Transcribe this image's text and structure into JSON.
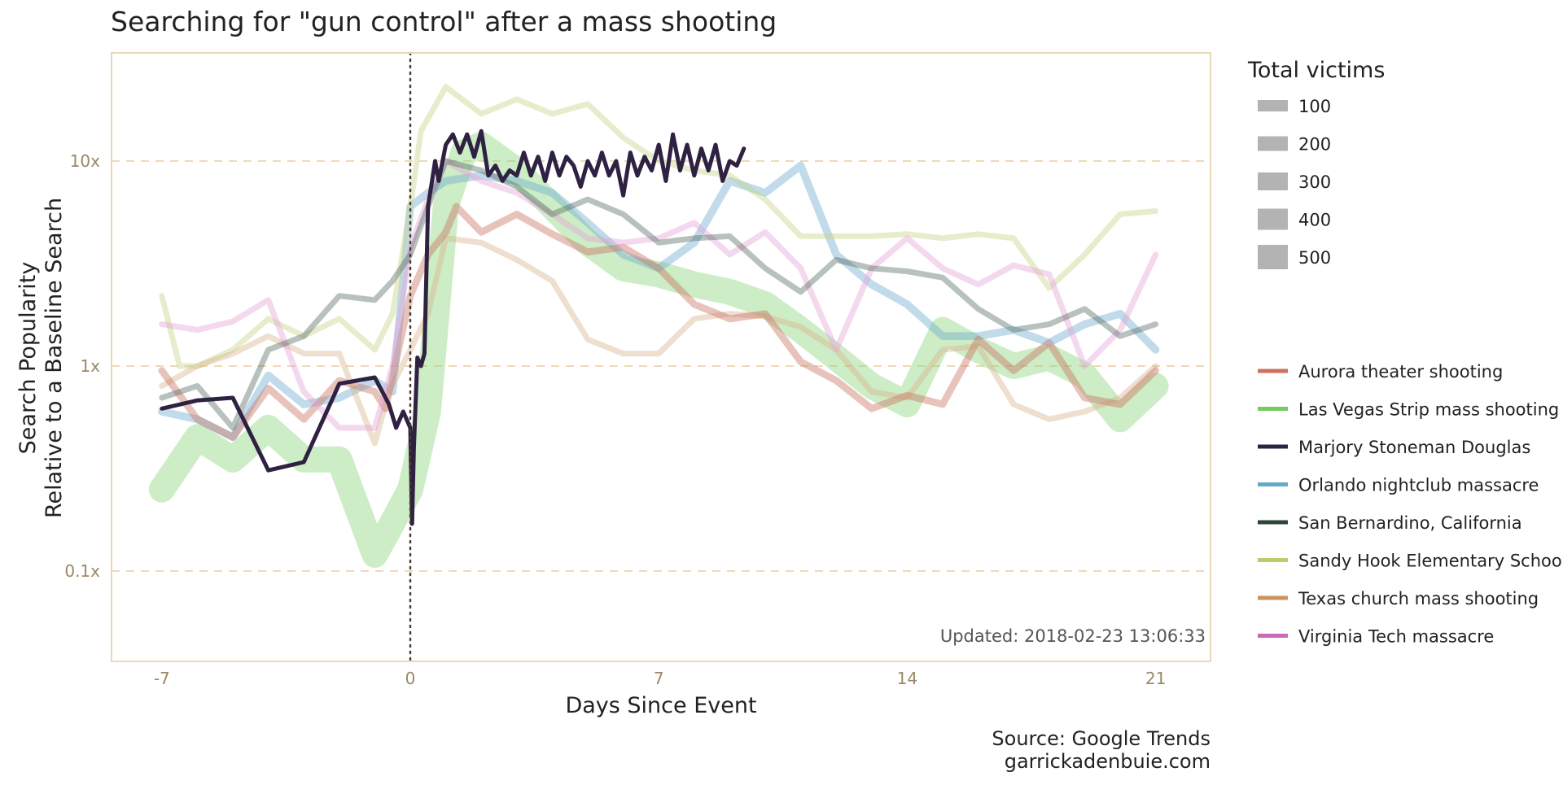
{
  "chart_data": {
    "type": "line",
    "title": "Searching for \"gun control\" after a mass shooting",
    "xlabel": "Days Since Event",
    "ylabel": [
      "Search Popularity",
      "Relative to a Baseline Search"
    ],
    "x_ticks": [
      -7,
      0,
      7,
      14,
      21
    ],
    "x_tick_labels": [
      "-7",
      "0",
      "7",
      "14",
      "21"
    ],
    "y_ticks": [
      0.1,
      1,
      10
    ],
    "y_tick_labels": [
      "0.1x",
      "1x",
      "10x"
    ],
    "y_scale": "log",
    "xlim": [
      -8.4,
      22.5
    ],
    "ylim": [
      0.04,
      30
    ],
    "vline_x": 0,
    "grid": "horizontal-dashed",
    "updated_text": "Updated: 2018-02-23 13:06:33",
    "source_lines": [
      "Source: Google Trends",
      "garrickadenbuie.com"
    ],
    "size_legend": {
      "title": "Total victims",
      "items": [
        "100",
        "200",
        "300",
        "400",
        "500"
      ]
    },
    "legend_position": "right",
    "series": [
      {
        "name": "Aurora theater shooting",
        "color": "#c8705e",
        "legend_color": "#cf6f5e",
        "victims": 82,
        "x": [
          -7,
          -6,
          -5,
          -4,
          -3,
          -2,
          -1,
          -0.7,
          0,
          0.5,
          1,
          1.3,
          2,
          3,
          4,
          5,
          6,
          7,
          8,
          9,
          10,
          11,
          12,
          13,
          14,
          15,
          16,
          17,
          18,
          19,
          20,
          21
        ],
        "y": [
          0.95,
          0.55,
          0.45,
          0.78,
          0.55,
          0.85,
          0.75,
          0.62,
          2.2,
          3.5,
          4.5,
          6.0,
          4.5,
          5.5,
          4.4,
          3.6,
          3.8,
          3.0,
          2.0,
          1.7,
          1.8,
          1.05,
          0.85,
          0.62,
          0.72,
          0.65,
          1.35,
          0.95,
          1.3,
          0.7,
          0.65,
          0.95
        ]
      },
      {
        "name": "Las Vegas Strip mass shooting",
        "color": "#87d478",
        "legend_color": "#78c963",
        "victims": 604,
        "x": [
          -7,
          -6,
          -5,
          -4,
          -3,
          -2,
          -1,
          -0.6,
          0,
          0.5,
          1,
          1.5,
          2,
          3,
          4,
          5,
          6,
          7,
          8,
          9,
          10,
          11,
          12,
          13,
          14,
          15,
          16,
          17,
          18,
          19,
          20,
          21
        ],
        "y": [
          0.25,
          0.45,
          0.35,
          0.5,
          0.35,
          0.35,
          0.12,
          0.16,
          0.25,
          0.6,
          6.0,
          11.0,
          12.0,
          9.0,
          6.0,
          4.0,
          3.0,
          2.8,
          2.5,
          2.3,
          2.0,
          1.5,
          1.1,
          0.8,
          0.65,
          1.5,
          1.2,
          1.0,
          1.1,
          0.9,
          0.55,
          0.8
        ]
      },
      {
        "name": "Orlando nightclub massacre",
        "color": "#6ba9cf",
        "legend_color": "#66a9c6",
        "victims": 102,
        "x": [
          -7,
          -6,
          -5,
          -4,
          -3,
          -2,
          -1,
          -0.5,
          0,
          0.5,
          1,
          2,
          3,
          4,
          5,
          6,
          7,
          8,
          9,
          10,
          11,
          12,
          13,
          14,
          15,
          16,
          17,
          18,
          19,
          20,
          21
        ],
        "y": [
          0.6,
          0.55,
          0.45,
          0.9,
          0.65,
          0.7,
          0.85,
          0.75,
          6.0,
          7.0,
          8.0,
          8.5,
          8.0,
          7.0,
          5.0,
          3.5,
          3.0,
          4.0,
          8.0,
          7.0,
          9.5,
          3.5,
          2.5,
          2.0,
          1.4,
          1.4,
          1.5,
          1.3,
          1.6,
          1.8,
          1.2
        ]
      },
      {
        "name": "San Bernardino, California",
        "color": "#4a6459",
        "legend_color": "#2d4537",
        "victims": 36,
        "x": [
          -7,
          -6,
          -5,
          -4,
          -3,
          -2,
          -1,
          -0.5,
          0,
          0.5,
          1,
          2,
          3,
          4,
          5,
          6,
          7,
          8,
          9,
          10,
          11,
          12,
          13,
          14,
          15,
          16,
          17,
          18,
          19,
          20,
          21
        ],
        "y": [
          0.7,
          0.8,
          0.5,
          1.2,
          1.4,
          2.2,
          2.1,
          2.6,
          3.5,
          6.0,
          10.0,
          9.0,
          7.5,
          5.5,
          6.5,
          5.5,
          4.0,
          4.2,
          4.3,
          3.0,
          2.3,
          3.3,
          3.0,
          2.9,
          2.7,
          1.9,
          1.5,
          1.6,
          1.9,
          1.4,
          1.6
        ]
      },
      {
        "name": "Sandy Hook Elementary School",
        "color": "#c6d585",
        "legend_color": "#bdcb6c",
        "victims": 28,
        "x": [
          -7,
          -6.5,
          -6,
          -5,
          -4,
          -3,
          -2,
          -1,
          -0.5,
          0,
          0.3,
          1,
          2,
          3,
          4,
          5,
          6,
          7,
          8,
          9,
          10,
          11,
          12,
          13,
          14,
          15,
          16,
          17,
          18,
          19,
          20,
          21
        ],
        "y": [
          2.2,
          1.0,
          1.0,
          1.2,
          1.7,
          1.4,
          1.7,
          1.2,
          1.8,
          6.0,
          14.0,
          23.0,
          17.0,
          20.0,
          17.0,
          19.0,
          13.0,
          10.0,
          9.0,
          8.5,
          6.5,
          4.3,
          4.3,
          4.3,
          4.4,
          4.2,
          4.4,
          4.2,
          2.4,
          3.5,
          5.5,
          5.7
        ]
      },
      {
        "name": "Texas church mass shooting",
        "color": "#d9b38c",
        "legend_color": "#c9955f",
        "victims": 46,
        "x": [
          -7,
          -6,
          -5,
          -4,
          -3,
          -2,
          -1,
          -0.6,
          0,
          0.5,
          1,
          2,
          3,
          4,
          5,
          6,
          7,
          8,
          9,
          10,
          11,
          12,
          13,
          14,
          15,
          16,
          17,
          18,
          19,
          20,
          21
        ],
        "y": [
          0.8,
          1.0,
          1.15,
          1.4,
          1.15,
          1.15,
          0.42,
          0.75,
          1.2,
          1.8,
          4.2,
          4.0,
          3.3,
          2.6,
          1.35,
          1.15,
          1.15,
          1.7,
          1.8,
          1.75,
          1.55,
          1.2,
          0.75,
          0.7,
          1.2,
          1.25,
          0.65,
          0.55,
          0.6,
          0.7,
          1.0
        ]
      },
      {
        "name": "Virginia Tech massacre",
        "color": "#e4a3d6",
        "legend_color": "#c86cba",
        "victims": 49,
        "x": [
          -7,
          -6,
          -5,
          -4,
          -3,
          -2,
          -1,
          -0.5,
          0,
          0.5,
          1,
          2,
          3,
          4,
          5,
          6,
          7,
          8,
          9,
          10,
          11,
          12,
          13,
          14,
          15,
          16,
          17,
          18,
          19,
          20,
          21
        ],
        "y": [
          1.6,
          1.5,
          1.65,
          2.1,
          0.75,
          0.5,
          0.5,
          1.0,
          3.8,
          6.5,
          10.0,
          8.0,
          7.0,
          5.5,
          4.2,
          4.0,
          4.2,
          5.0,
          3.5,
          4.5,
          3.0,
          1.2,
          3.0,
          4.2,
          3.0,
          2.5,
          3.1,
          2.8,
          1.0,
          1.5,
          3.5
        ]
      },
      {
        "name": "Marjory Stoneman Douglas",
        "color": "#2f2142",
        "legend_color": "#2d2340",
        "victims": 31,
        "x": [
          -7,
          -6,
          -5,
          -4,
          -3,
          -2,
          -1,
          -0.6,
          -0.4,
          -0.2,
          0,
          0.05,
          0.1,
          0.2,
          0.3,
          0.4,
          0.5,
          0.7,
          0.8,
          1.0,
          1.2,
          1.4,
          1.6,
          1.8,
          2.0,
          2.2,
          2.4,
          2.6,
          2.8,
          3.0,
          3.2,
          3.4,
          3.6,
          3.8,
          4.0,
          4.2,
          4.4,
          4.6,
          4.8,
          5.0,
          5.2,
          5.4,
          5.6,
          5.8,
          6.0,
          6.2,
          6.4,
          6.6,
          6.8,
          7.0,
          7.2,
          7.4,
          7.6,
          7.8,
          8.0,
          8.2,
          8.4,
          8.6,
          8.8,
          9.0,
          9.2,
          9.4
        ],
        "y": [
          0.62,
          0.68,
          0.7,
          0.31,
          0.34,
          0.82,
          0.88,
          0.65,
          0.5,
          0.6,
          0.5,
          0.17,
          0.4,
          1.1,
          1.0,
          1.15,
          6.0,
          10.0,
          8.0,
          12.0,
          13.5,
          11.0,
          13.5,
          10.5,
          14.0,
          8.5,
          9.5,
          8.0,
          9.0,
          8.5,
          11.0,
          8.5,
          10.5,
          8.0,
          11.0,
          8.5,
          10.5,
          9.5,
          7.5,
          10.0,
          8.5,
          11.0,
          8.5,
          10.0,
          6.8,
          11.0,
          8.5,
          10.5,
          9.0,
          12.0,
          8.0,
          13.5,
          9.0,
          12.0,
          8.5,
          11.5,
          9.0,
          12.0,
          8.0,
          10.0,
          9.5,
          11.5
        ]
      }
    ]
  }
}
